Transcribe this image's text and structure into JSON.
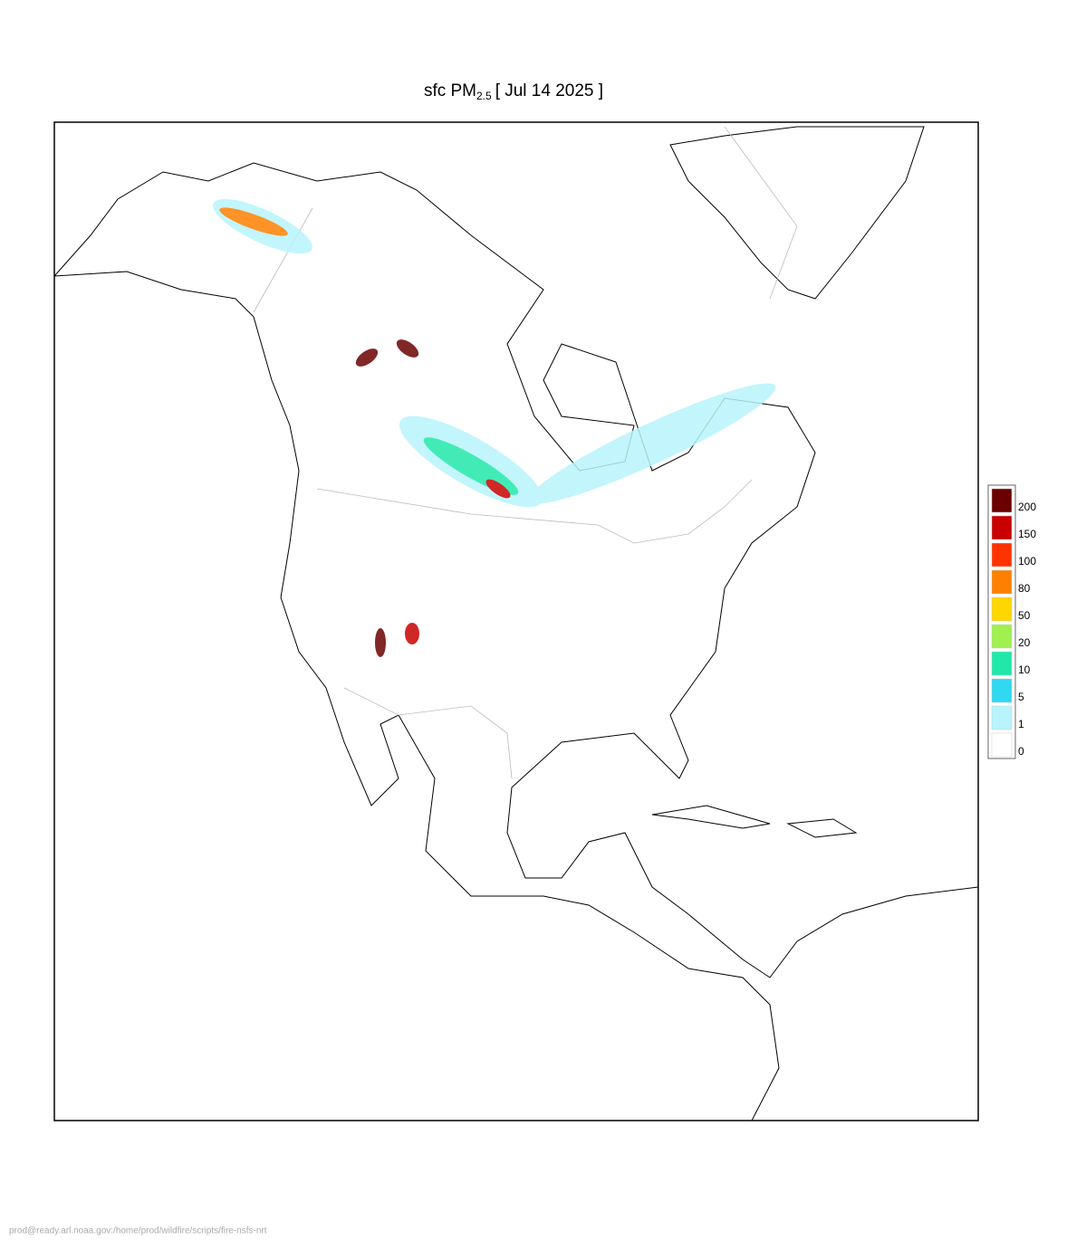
{
  "header": {
    "title": {
      "prefix": "sfc PM",
      "subscript": "2.5",
      "suffix": "[ Jul 14 2025 ]"
    }
  },
  "legend": {
    "levels": [
      200,
      150,
      100,
      80,
      50,
      20,
      10,
      5,
      1,
      0
    ],
    "colors": [
      "#6b0000",
      "#c80000",
      "#ff3300",
      "#ff8000",
      "#ffd700",
      "#a0f050",
      "#20e8a8",
      "#30d8f0",
      "#b8f4fc",
      "#ffffff"
    ]
  },
  "footer": "prod@ready.arl.noaa.gov:/home/prod/wildfire/scripts/fire-nsfs-nrt"
}
